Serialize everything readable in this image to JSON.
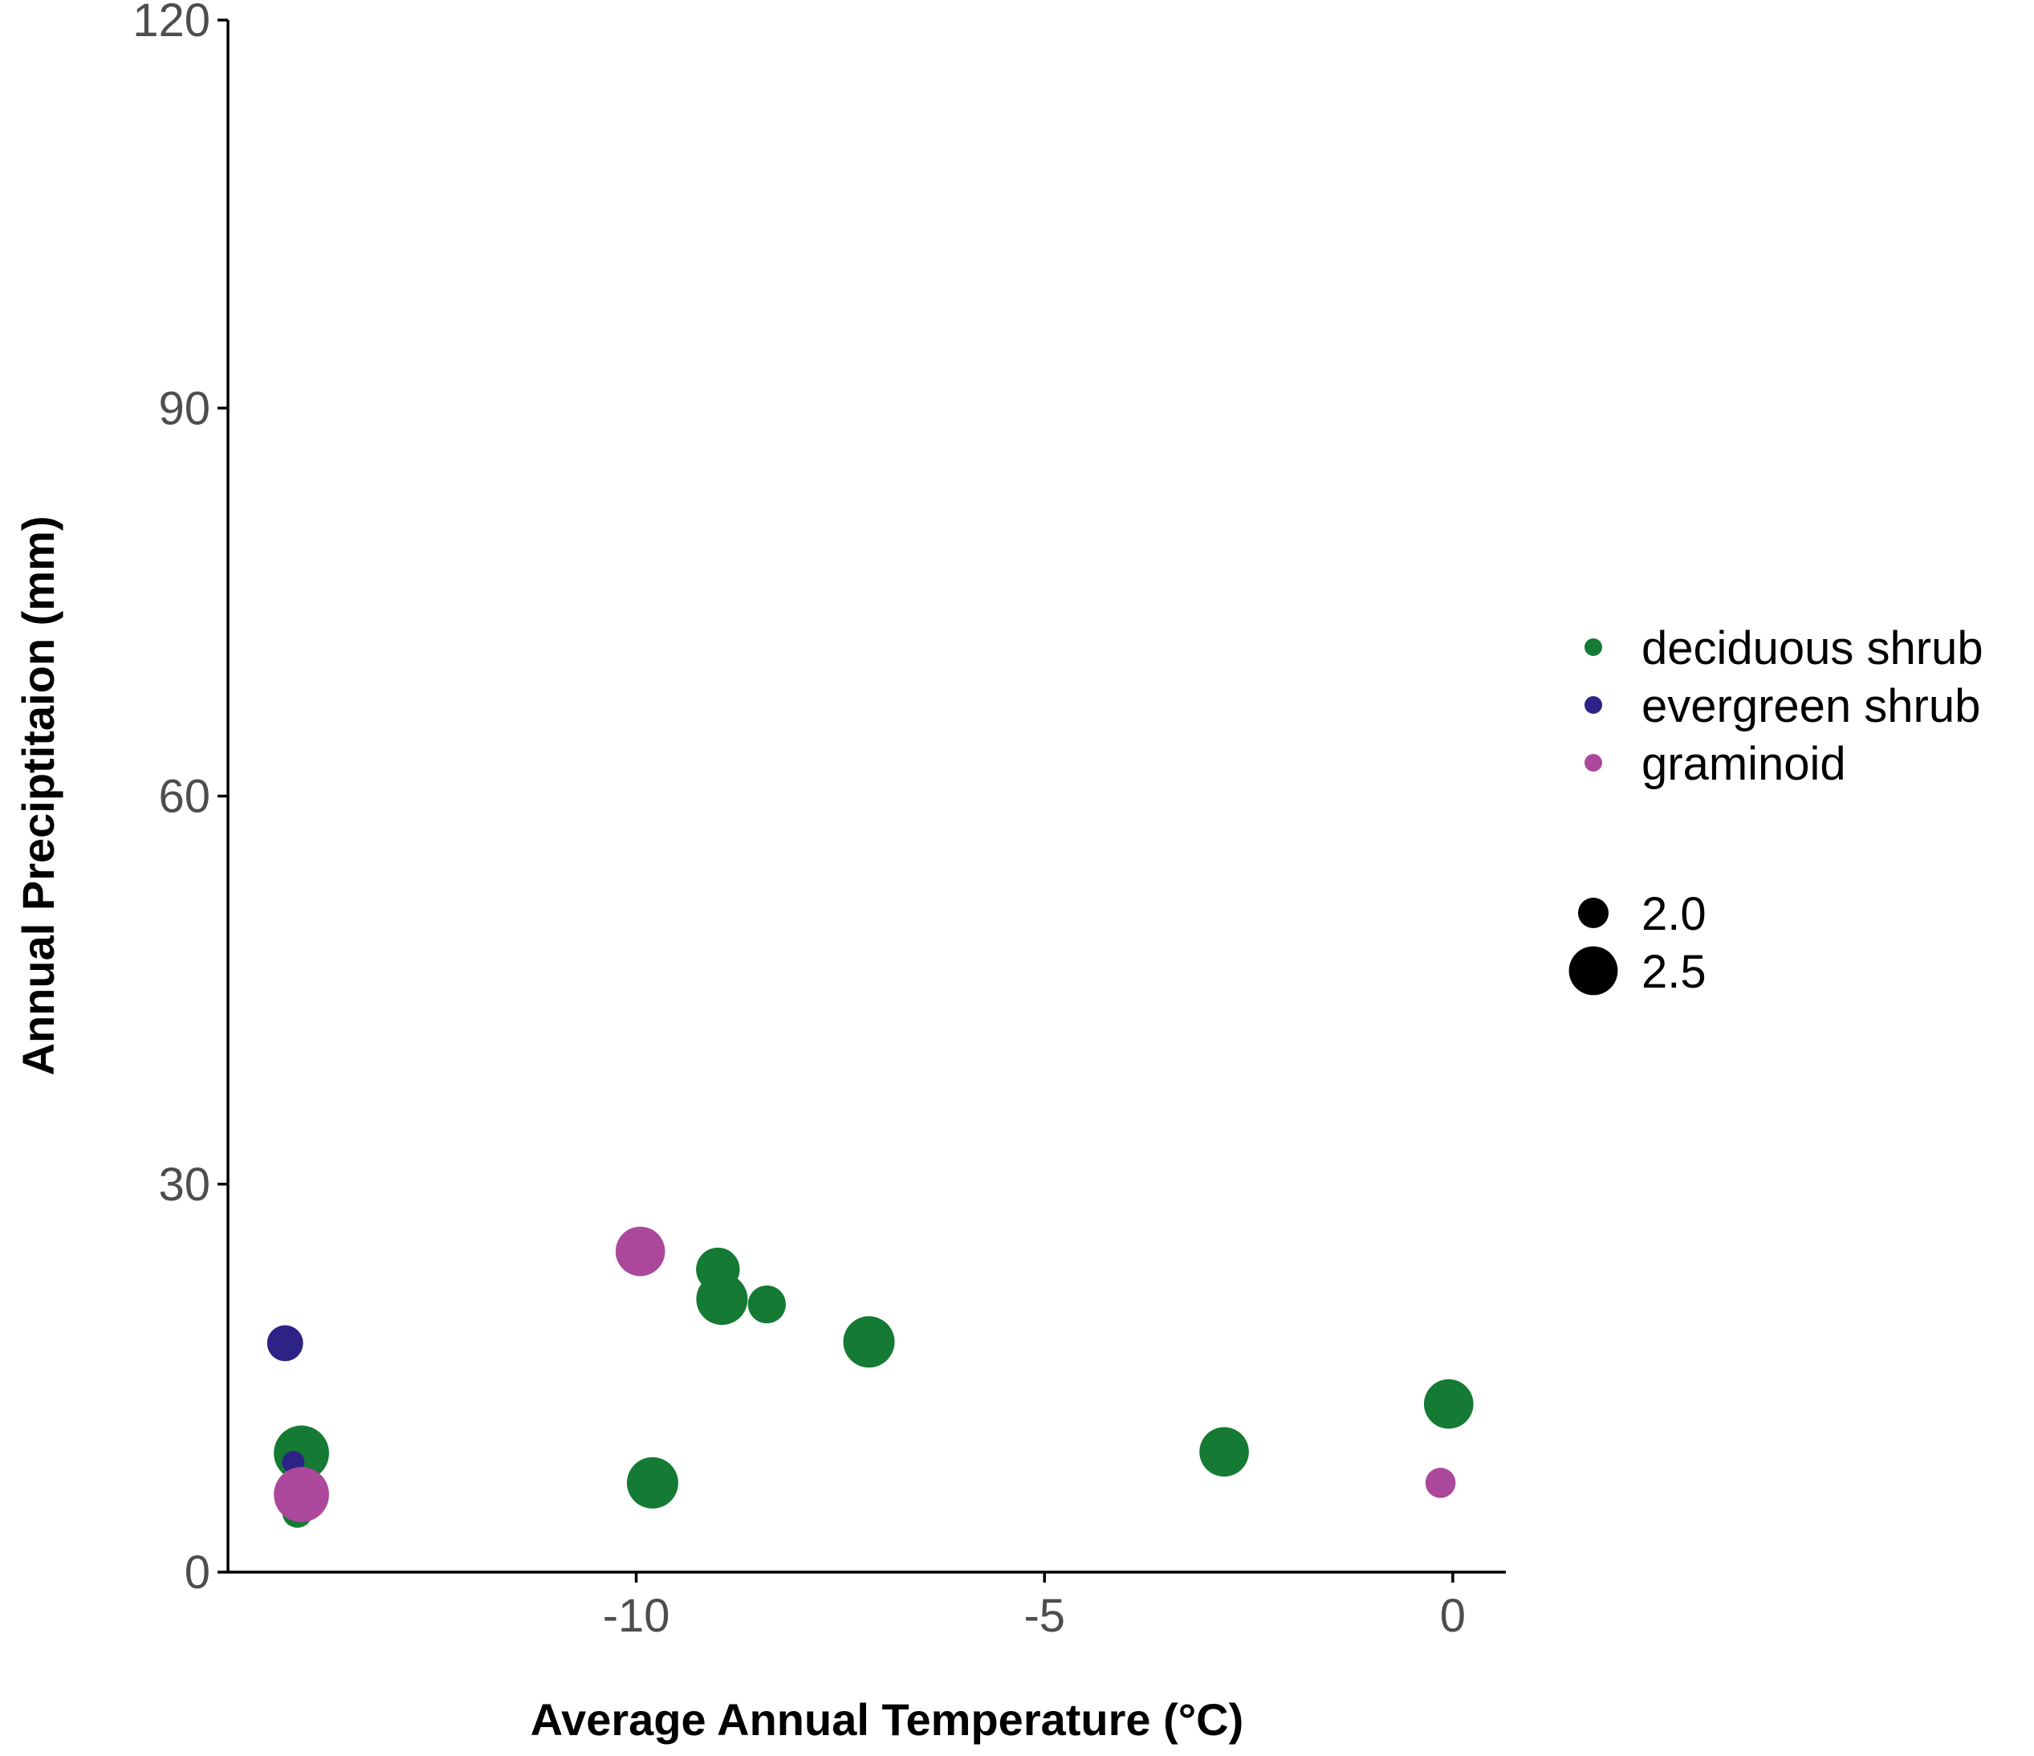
{
  "chart_data": {
    "type": "scatter",
    "title": "",
    "xlabel": "Average Annual Temperature (°C)",
    "ylabel": "Annual Preciptitaion (mm)",
    "xlim": [
      -15.0,
      0.65
    ],
    "ylim": [
      0,
      120
    ],
    "x_ticks": [
      {
        "value": -10,
        "label": "-10"
      },
      {
        "value": -5,
        "label": "-5"
      },
      {
        "value": 0,
        "label": "0"
      }
    ],
    "y_ticks": [
      {
        "value": 0,
        "label": "0"
      },
      {
        "value": 30,
        "label": "30"
      },
      {
        "value": 60,
        "label": "60"
      },
      {
        "value": 90,
        "label": "90"
      },
      {
        "value": 120,
        "label": "120"
      }
    ],
    "grid": false,
    "legend_position": "right",
    "color_legend": [
      {
        "label": "deciduous shrub",
        "color": "#157A33"
      },
      {
        "label": "evergreen shrub",
        "color": "#2D2386"
      },
      {
        "label": "graminoid",
        "color": "#AB489B"
      }
    ],
    "size_legend": [
      {
        "label": "2.0",
        "value": 2.0
      },
      {
        "label": "2.5",
        "value": 2.5
      }
    ],
    "series": [
      {
        "name": "deciduous shrub",
        "color": "#157A33",
        "points": [
          {
            "x": -14.1,
            "y": 9.2,
            "size": 2.6
          },
          {
            "x": -14.15,
            "y": 4.6,
            "size": 1.95
          },
          {
            "x": -9.8,
            "y": 6.9,
            "size": 2.5
          },
          {
            "x": -9.0,
            "y": 23.4,
            "size": 2.3
          },
          {
            "x": -8.95,
            "y": 21.1,
            "size": 2.5
          },
          {
            "x": -8.4,
            "y": 20.7,
            "size": 2.15
          },
          {
            "x": -7.15,
            "y": 17.8,
            "size": 2.5
          },
          {
            "x": -2.8,
            "y": 9.3,
            "size": 2.45
          },
          {
            "x": -0.05,
            "y": 13.0,
            "size": 2.45
          }
        ]
      },
      {
        "name": "evergreen shrub",
        "color": "#2D2386",
        "points": [
          {
            "x": -14.3,
            "y": 17.7,
            "size": 2.1
          },
          {
            "x": -14.2,
            "y": 8.5,
            "size": 1.75
          }
        ]
      },
      {
        "name": "graminoid",
        "color": "#AB489B",
        "points": [
          {
            "x": -9.95,
            "y": 24.8,
            "size": 2.45
          },
          {
            "x": -14.1,
            "y": 6.0,
            "size": 2.6
          },
          {
            "x": -0.15,
            "y": 6.9,
            "size": 1.95
          }
        ]
      }
    ]
  }
}
